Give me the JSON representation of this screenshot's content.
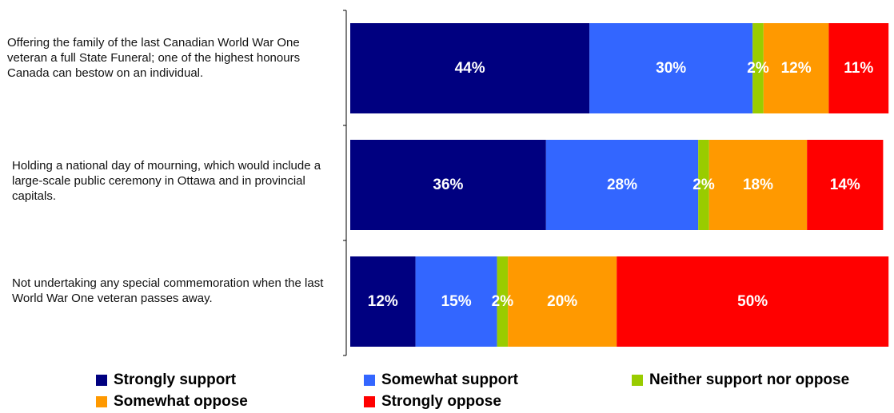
{
  "chart_data": {
    "type": "bar",
    "orientation": "horizontal",
    "stacked": true,
    "categories": [
      "Offering the family of the last Canadian World War One veteran a full State Funeral; one of the highest honours Canada can bestow on an individual.",
      "Holding a national day of mourning, which would include a large-scale public ceremony in Ottawa and in provincial capitals.",
      "Not undertaking any special commemoration when the last World War One veteran passes away."
    ],
    "series": [
      {
        "name": "Strongly support",
        "color": "#000080",
        "values": [
          44,
          36,
          12
        ],
        "labels": [
          "44%",
          "36%",
          "12%"
        ]
      },
      {
        "name": "Somewhat support",
        "color": "#3366FF",
        "values": [
          30,
          28,
          15
        ],
        "labels": [
          "30%",
          "28%",
          "15%"
        ]
      },
      {
        "name": "Neither support nor oppose",
        "color": "#99CC00",
        "values": [
          2,
          2,
          2
        ],
        "labels": [
          "2%",
          "2%",
          "2%"
        ]
      },
      {
        "name": "Somewhat oppose",
        "color": "#FF9900",
        "values": [
          12,
          18,
          20
        ],
        "labels": [
          "12%",
          "18%",
          "20%"
        ]
      },
      {
        "name": "Strongly oppose",
        "color": "#FF0000",
        "values": [
          11,
          14,
          50
        ],
        "labels": [
          "11%",
          "14%",
          "50%"
        ]
      }
    ],
    "xlim": [
      0,
      100
    ],
    "grid": false,
    "legend_position": "bottom",
    "data_label_color": "#ffffff"
  }
}
